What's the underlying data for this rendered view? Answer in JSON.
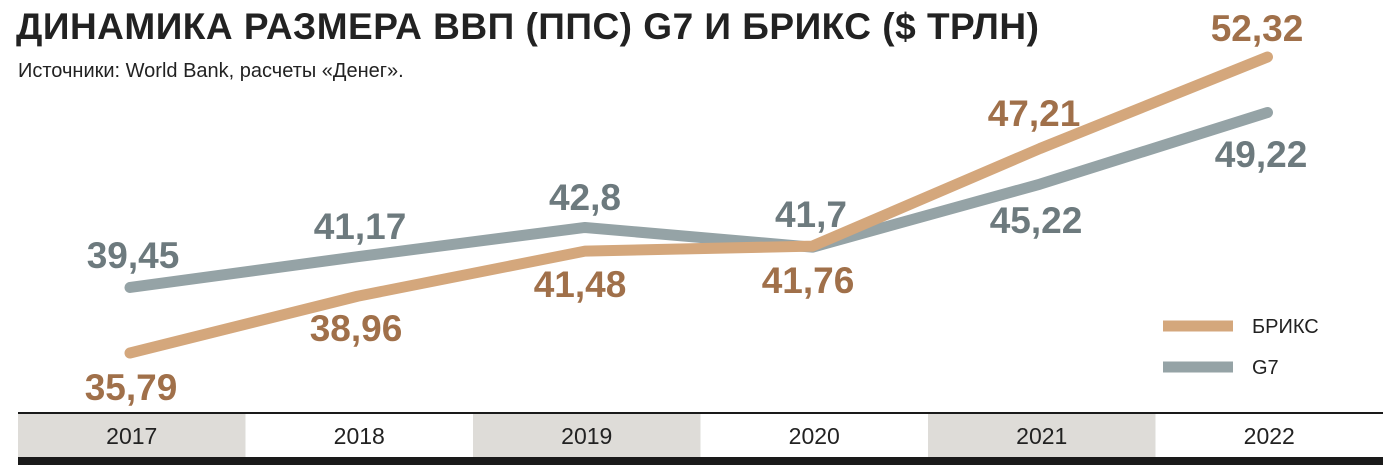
{
  "title": "ДИНАМИКА РАЗМЕРА ВВП (ППС) G7 И БРИКС ($ ТРЛН)",
  "subtitle": "Источники: World Bank, расчеты «Денег».",
  "colors": {
    "brics": "#d4a77c",
    "brics_label": "#a0704a",
    "g7": "#95a3a6",
    "g7_label": "#6d7a7e",
    "band_shaded": "#dedcd8",
    "axis_dark": "#1a1a1a"
  },
  "chart_data": {
    "type": "line",
    "title": "ДИНАМИКА РАЗМЕРА ВВП (ППС) G7 И БРИКС ($ ТРЛН)",
    "x": [
      "2017",
      "2018",
      "2019",
      "2020",
      "2021",
      "2022"
    ],
    "series": [
      {
        "name": "БРИКС",
        "values": [
          35.79,
          38.96,
          41.48,
          41.76,
          47.21,
          52.32
        ],
        "labels": [
          "35,79",
          "38,96",
          "41,48",
          "41,76",
          "47,21",
          "52,32"
        ]
      },
      {
        "name": "G7",
        "values": [
          39.45,
          41.17,
          42.8,
          41.7,
          45.22,
          49.22
        ],
        "labels": [
          "39,45",
          "41,17",
          "42,8",
          "41,7",
          "45,22",
          "49,22"
        ]
      }
    ],
    "legend": "bottom-right",
    "grid": false,
    "xlabel": "",
    "ylabel": ""
  }
}
